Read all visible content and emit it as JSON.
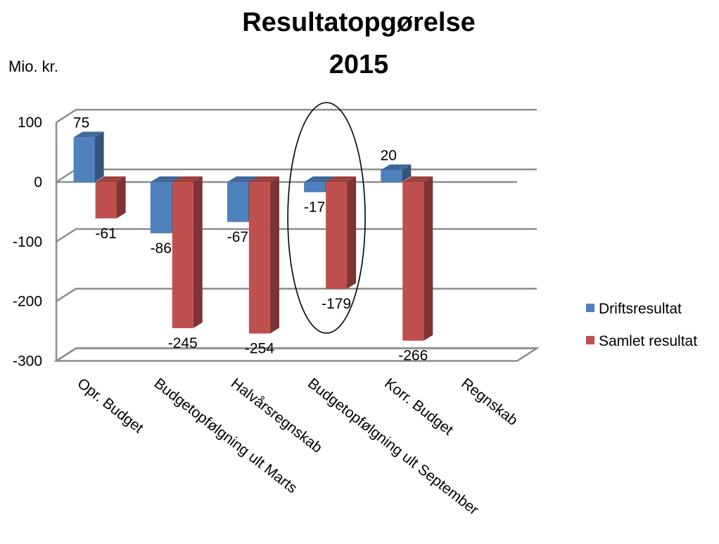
{
  "title_line1": "Resultatopgørelse",
  "title_line2": "2015",
  "unit_label": "Mio. kr.",
  "colors": {
    "driftsresultat": "#4f81bd",
    "samlet": "#c0504d",
    "annotation_ellipse": "#000000"
  },
  "chart_data": {
    "type": "bar",
    "style": "3d-clustered-column",
    "title": "Resultatopgørelse 2015",
    "ylabel": "Mio. kr.",
    "xlabel": "",
    "categories": [
      "Opr. Budget",
      "Budgetopfølgning ult Marts",
      "Halvårsregnskab",
      "Budgetopfølgning ult September",
      "Korr. Budget",
      "Regnskab"
    ],
    "series": [
      {
        "name": "Driftsresultat",
        "values": [
          75,
          -86,
          -67,
          -17,
          20,
          null
        ]
      },
      {
        "name": "Samlet resultat",
        "values": [
          -61,
          -245,
          -254,
          -179,
          -266,
          null
        ]
      }
    ],
    "ylim": [
      -300,
      100
    ],
    "yticks": [
      100,
      0,
      -100,
      -200,
      -300
    ],
    "grid": true,
    "legend_position": "right",
    "annotation": "ellipse around Budgetopfølgning ult September"
  }
}
